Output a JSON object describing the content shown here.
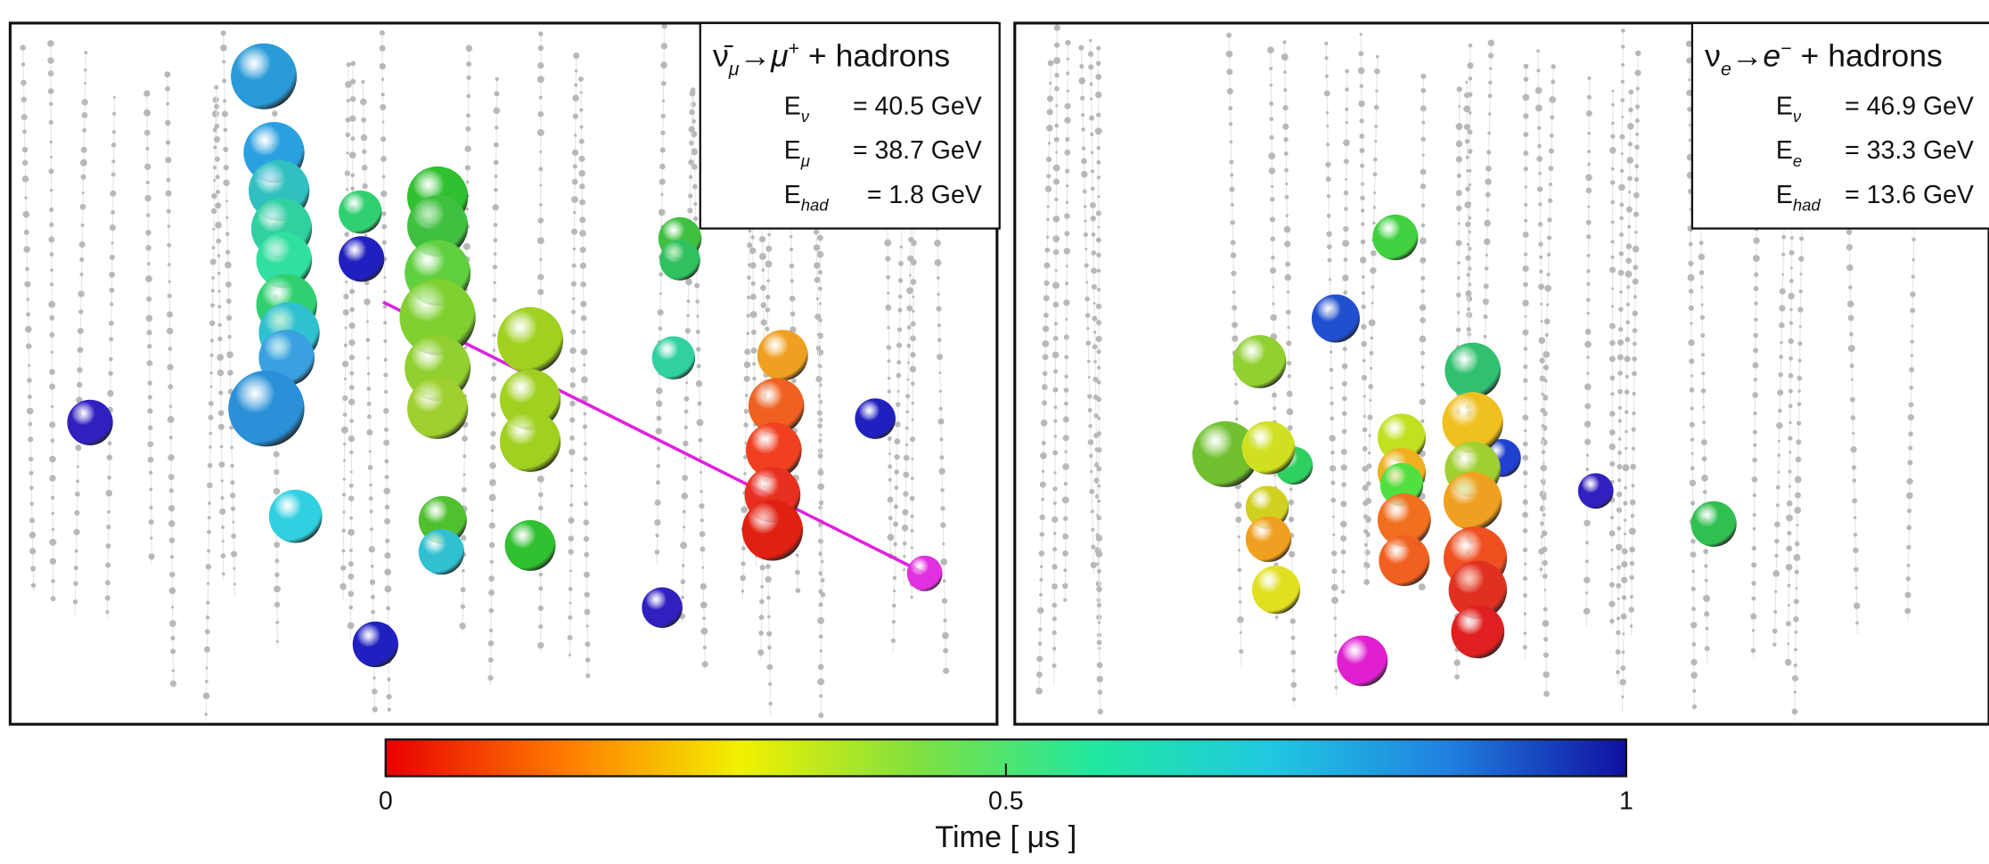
{
  "panels": [
    {
      "reaction": {
        "neutrino": "ν̄",
        "neutrino_sub": "μ",
        "arrow": "→",
        "lepton": "μ",
        "lepton_sup": "+",
        "rest": " + hadrons"
      },
      "energies": [
        {
          "symbol": "E",
          "sub": "ν",
          "text": "= 40.5 GeV"
        },
        {
          "symbol": "E",
          "sub": "μ",
          "text": "= 38.7 GeV"
        },
        {
          "symbol": "E",
          "sub": "had",
          "text": "=  1.8 GeV"
        }
      ]
    },
    {
      "reaction": {
        "neutrino": "ν",
        "neutrino_sub": "e",
        "arrow": "→",
        "lepton": "e",
        "lepton_sup": "−",
        "rest": " + hadrons"
      },
      "energies": [
        {
          "symbol": "E",
          "sub": "ν",
          "text": "= 46.9 GeV"
        },
        {
          "symbol": "E",
          "sub": "e",
          "text": "= 33.3 GeV"
        },
        {
          "symbol": "E",
          "sub": "had",
          "text": "= 13.6 GeV"
        }
      ]
    }
  ],
  "colorbar": {
    "label": "Time [ μs ]",
    "lim": [
      0,
      1
    ],
    "ticks": [
      0,
      0.5,
      1
    ],
    "colors": [
      "#e80000",
      "#ff7a00",
      "#f2f000",
      "#80e040",
      "#20e8a0",
      "#20c8e0",
      "#2080e0",
      "#1010a0"
    ]
  }
}
